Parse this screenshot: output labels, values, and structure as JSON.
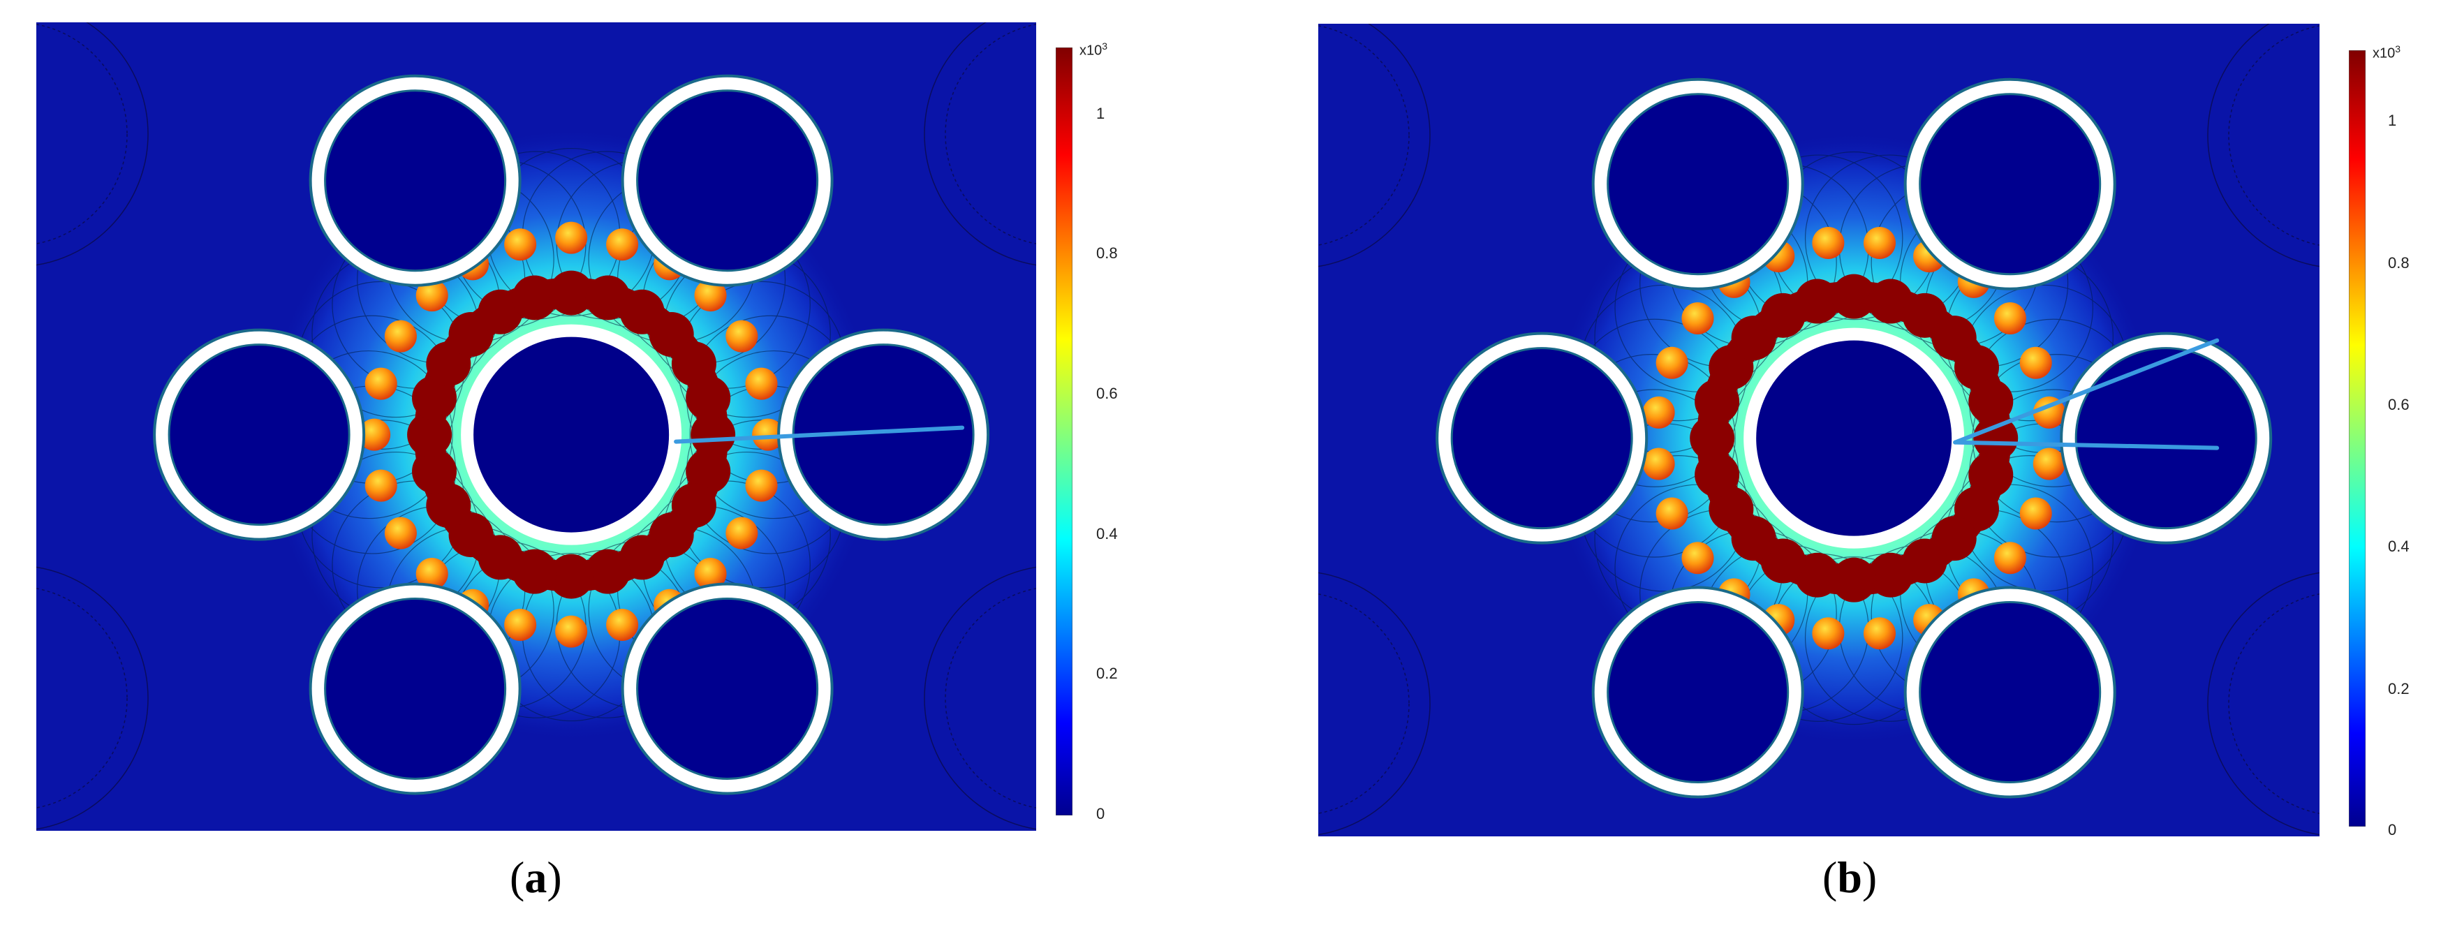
{
  "panels": [
    {
      "id": "a",
      "caption_open": "(",
      "caption_letter": "a",
      "caption_close": ")",
      "inner_ring_count": 24,
      "outer_ring_count": 24,
      "probe_lines": 1
    },
    {
      "id": "b",
      "caption_open": "(",
      "caption_letter": "b",
      "caption_close": ")",
      "inner_ring_count": 24,
      "outer_ring_count": 24,
      "probe_lines": 2
    }
  ],
  "colorbar": {
    "unit_base": "x10",
    "unit_exp": "3",
    "ticks": [
      "1",
      "0.8",
      "0.6",
      "0.4",
      "0.2",
      "0"
    ],
    "tick_values": [
      1.0,
      0.8,
      0.6,
      0.4,
      0.2,
      0.0
    ],
    "range": [
      0,
      1.05
    ]
  },
  "colors": {
    "background_field": "#0a14a8",
    "deep_blue": "#00006a",
    "dark_red": "#8b0000",
    "cladding_ring": "#ffffff",
    "ring_edge": "#1a6a8a",
    "probe_line": "#3a9be0"
  }
}
